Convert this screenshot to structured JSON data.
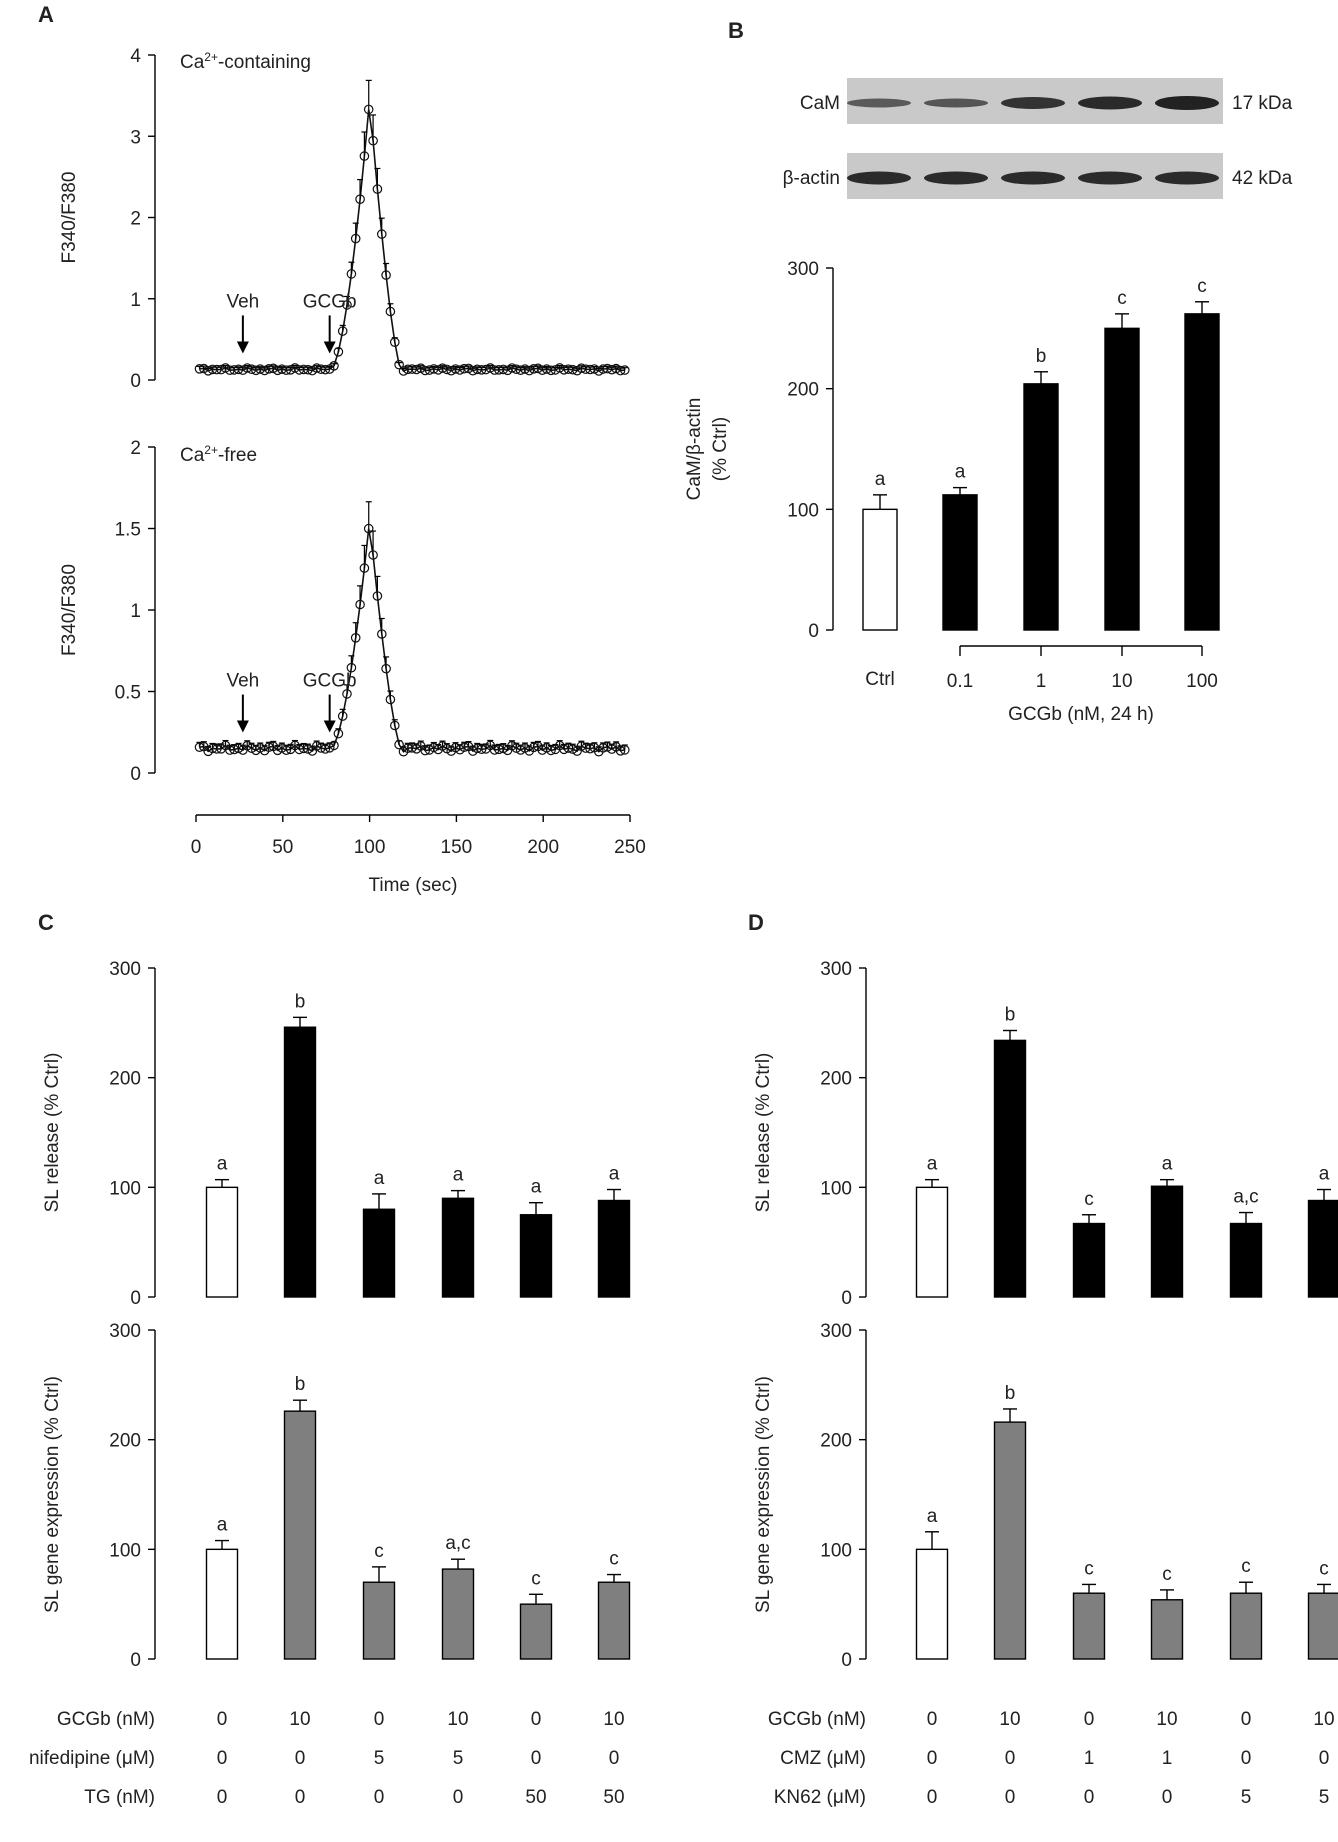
{
  "chart_data": [
    {
      "id": "A1",
      "panel_letter": "A",
      "type": "line",
      "title": "Ca²⁺-containing",
      "title_base": "Ca",
      "title_sup": "2+",
      "title_rest": "-containing",
      "ylabel": "F340/F380",
      "xlim": [
        0,
        250
      ],
      "ylim": [
        0,
        4
      ],
      "yticks": [
        0,
        1,
        2,
        3,
        4
      ],
      "ytick_labels": [
        "0",
        "1",
        "2",
        "3",
        "4"
      ],
      "baseline": 0.13,
      "peak": {
        "x": 100,
        "y": 3.45,
        "error": 0.35
      },
      "annotations": [
        {
          "label": "Veh",
          "x": 27,
          "y": 0.13
        },
        {
          "label": "GCGb",
          "x": 77,
          "y": 0.13
        }
      ]
    },
    {
      "id": "A2",
      "type": "line",
      "title": "Ca²⁺-free",
      "title_base": "Ca",
      "title_sup": "2+",
      "title_rest": "-free",
      "ylabel": "F340/F380",
      "xlabel": "Time (sec)",
      "xlim": [
        0,
        250
      ],
      "ylim": [
        0,
        2
      ],
      "xticks": [
        0,
        50,
        100,
        150,
        200,
        250
      ],
      "xtick_labels": [
        "0",
        "50",
        "100",
        "150",
        "200",
        "250"
      ],
      "yticks": [
        0,
        0.5,
        1,
        1.5,
        2
      ],
      "ytick_labels": [
        "0",
        "0.5",
        "1",
        "1.5",
        "2"
      ],
      "baseline": 0.15,
      "peak": {
        "x": 100,
        "y": 1.55,
        "error": 0.15
      },
      "annotations": [
        {
          "label": "Veh",
          "x": 27,
          "y": 0.15
        },
        {
          "label": "GCGb",
          "x": 77,
          "y": 0.15
        }
      ]
    },
    {
      "id": "B",
      "panel_letter": "B",
      "type": "bar",
      "ylabel": "CaM/β-actin",
      "ylabel2": "(% Ctrl)",
      "ylim": [
        0,
        300
      ],
      "yticks": [
        0,
        100,
        200,
        300
      ],
      "ytick_labels": [
        "0",
        "100",
        "200",
        "300"
      ],
      "categories": [
        "Ctrl",
        "0.1",
        "1",
        "10",
        "100"
      ],
      "values": [
        100,
        112,
        204,
        250,
        262
      ],
      "errors": [
        12,
        6,
        10,
        12,
        10
      ],
      "fills": [
        "white",
        "black",
        "black",
        "black",
        "black"
      ],
      "letters": [
        "a",
        "a",
        "b",
        "c",
        "c"
      ],
      "xlabel": "GCGb (nM, 24 h)",
      "blot": {
        "rows": [
          "CaM",
          "β-actin"
        ],
        "sizes": [
          "17 kDa",
          "42 kDa"
        ]
      }
    },
    {
      "id": "C1",
      "panel_letter": "C",
      "type": "bar",
      "ylabel": "SL release (% Ctrl)",
      "ylim": [
        0,
        300
      ],
      "yticks": [
        0,
        100,
        200,
        300
      ],
      "ytick_labels": [
        "0",
        "100",
        "200",
        "300"
      ],
      "values": [
        100,
        246,
        80,
        90,
        75,
        88
      ],
      "errors": [
        7,
        9,
        14,
        7,
        11,
        10
      ],
      "fills": [
        "white",
        "black",
        "black",
        "black",
        "black",
        "black"
      ],
      "letters": [
        "a",
        "b",
        "a",
        "a",
        "a",
        "a"
      ]
    },
    {
      "id": "C2",
      "type": "bar",
      "ylabel": "SL gene expression (% Ctrl)",
      "ylim": [
        0,
        300
      ],
      "yticks": [
        0,
        100,
        200,
        300
      ],
      "ytick_labels": [
        "0",
        "100",
        "200",
        "300"
      ],
      "values": [
        100,
        226,
        70,
        82,
        50,
        70
      ],
      "errors": [
        8,
        10,
        14,
        9,
        9,
        7
      ],
      "fills": [
        "white",
        "gray",
        "gray",
        "gray",
        "gray",
        "gray"
      ],
      "letters": [
        "a",
        "b",
        "c",
        "a,c",
        "c",
        "c"
      ],
      "conditions": [
        {
          "label": "GCGb (nM)",
          "values": [
            "0",
            "10",
            "0",
            "10",
            "0",
            "10"
          ]
        },
        {
          "label": "nifedipine (μM)",
          "values": [
            "0",
            "0",
            "5",
            "5",
            "0",
            "0"
          ]
        },
        {
          "label": "TG (nM)",
          "values": [
            "0",
            "0",
            "0",
            "0",
            "50",
            "50"
          ]
        }
      ]
    },
    {
      "id": "D1",
      "panel_letter": "D",
      "type": "bar",
      "ylabel": "SL release (% Ctrl)",
      "ylim": [
        0,
        300
      ],
      "yticks": [
        0,
        100,
        200,
        300
      ],
      "ytick_labels": [
        "0",
        "100",
        "200",
        "300"
      ],
      "values": [
        100,
        234,
        67,
        101,
        67,
        88
      ],
      "errors": [
        7,
        9,
        8,
        6,
        10,
        10
      ],
      "fills": [
        "white",
        "black",
        "black",
        "black",
        "black",
        "black"
      ],
      "letters": [
        "a",
        "b",
        "c",
        "a",
        "a,c",
        "a"
      ]
    },
    {
      "id": "D2",
      "type": "bar",
      "ylabel": "SL gene expression (% Ctrl)",
      "ylim": [
        0,
        300
      ],
      "yticks": [
        0,
        100,
        200,
        300
      ],
      "ytick_labels": [
        "0",
        "100",
        "200",
        "300"
      ],
      "values": [
        100,
        216,
        60,
        54,
        60,
        60
      ],
      "errors": [
        16,
        12,
        8,
        9,
        10,
        8
      ],
      "fills": [
        "white",
        "gray",
        "gray",
        "gray",
        "gray",
        "gray"
      ],
      "letters": [
        "a",
        "b",
        "c",
        "c",
        "c",
        "c"
      ],
      "conditions": [
        {
          "label": "GCGb (nM)",
          "values": [
            "0",
            "10",
            "0",
            "10",
            "0",
            "10"
          ]
        },
        {
          "label": "CMZ (μM)",
          "values": [
            "0",
            "0",
            "1",
            "1",
            "0",
            "0"
          ]
        },
        {
          "label": "KN62 (μM)",
          "values": [
            "0",
            "0",
            "0",
            "0",
            "5",
            "5"
          ]
        }
      ]
    }
  ]
}
